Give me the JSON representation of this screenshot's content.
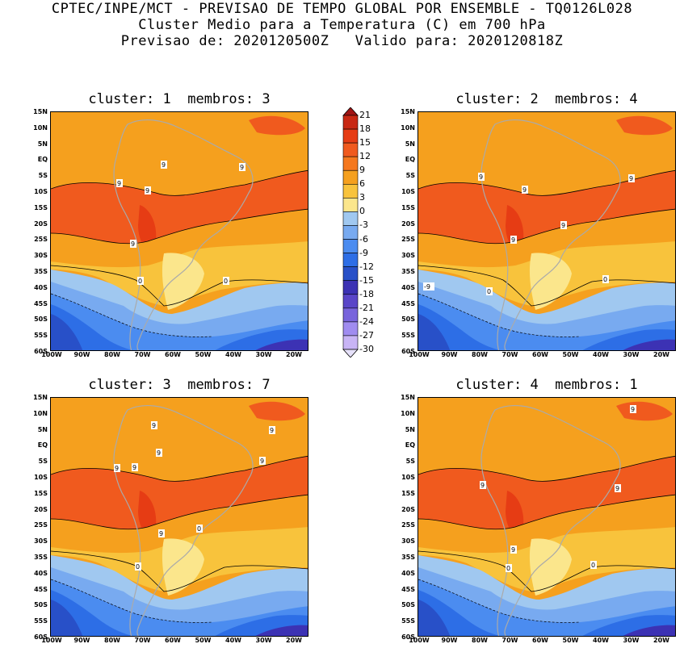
{
  "header": {
    "line1": "CPTEC/INPE/MCT - PREVISAO DE TEMPO GLOBAL POR ENSEMBLE - TQ0126L028",
    "line2": "Cluster Medio para a Temperatura (C) em 700 hPa",
    "line3": "Previsao de: 2020120500Z   Valido para: 2020120818Z"
  },
  "panels": [
    {
      "title": "cluster: 1  membros: 3"
    },
    {
      "title": "cluster: 2  membros: 4"
    },
    {
      "title": "cluster: 3  membros: 7"
    },
    {
      "title": "cluster: 4  membros: 1"
    }
  ],
  "axes": {
    "lat_labels": [
      "15N",
      "10N",
      "5N",
      "EQ",
      "5S",
      "10S",
      "15S",
      "20S",
      "25S",
      "30S",
      "35S",
      "40S",
      "45S",
      "50S",
      "55S",
      "60S"
    ],
    "lon_labels": [
      "100W",
      "90W",
      "80W",
      "70W",
      "60W",
      "50W",
      "40W",
      "30W",
      "20W"
    ]
  },
  "colorbar": {
    "levels": [
      "21",
      "18",
      "15",
      "12",
      "9",
      "6",
      "3",
      "0",
      "-3",
      "-6",
      "-9",
      "-12",
      "-15",
      "-18",
      "-21",
      "-24",
      "-27",
      "-30"
    ],
    "colors": [
      "#a01414",
      "#c82814",
      "#e63c14",
      "#f05a1e",
      "#f5781e",
      "#f5a01e",
      "#f8c33c",
      "#fbe68c",
      "#a0c8f0",
      "#78aaf0",
      "#4b8cf0",
      "#2d6ee6",
      "#2850c8",
      "#3c32b4",
      "#5a46c8",
      "#7864dc",
      "#a08cf0",
      "#c8b4f5",
      "#e6e1fa"
    ]
  },
  "contour_labels": {
    "panel1": [
      "9",
      "9",
      "9",
      "9",
      "9",
      "0",
      "0"
    ],
    "panel2": [
      "9",
      "9",
      "9",
      "9",
      "9",
      "0",
      "0",
      "-9"
    ],
    "panel3": [
      "9",
      "9",
      "9",
      "9",
      "9",
      "9",
      "9",
      "0",
      "0"
    ],
    "panel4": [
      "9",
      "9",
      "9",
      "9",
      "0",
      "0"
    ]
  }
}
